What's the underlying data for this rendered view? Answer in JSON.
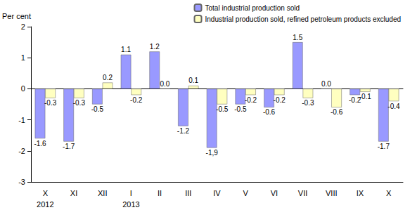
{
  "chart_data": {
    "type": "bar",
    "y_label": "Per cent",
    "categories": [
      "X\n2012",
      "XI",
      "XII",
      "I\n2013",
      "II",
      "III",
      "IV",
      "V",
      "VI",
      "VII",
      "VIII",
      "IX",
      "X"
    ],
    "series": [
      {
        "name": "Total industrial production sold",
        "color": "#9999ff",
        "values": [
          -1.6,
          -1.7,
          -0.5,
          1.1,
          1.2,
          -1.2,
          -1.9,
          -0.5,
          -0.6,
          1.5,
          0.0,
          -0.2,
          -1.7
        ],
        "value_labels": [
          "-1.6",
          "-1.7",
          "-0.5",
          "1.1",
          "1.2",
          "-1.2",
          "-1,9",
          "-0.5",
          "-0.6",
          "1.5",
          "0.0",
          "-0.2",
          "-1.7"
        ]
      },
      {
        "name": "Industrial production sold, refined petroleum products excluded",
        "color": "#ffffc0",
        "values": [
          -0.3,
          -0.3,
          0.2,
          -0.2,
          0.0,
          0.1,
          -0.5,
          -0.2,
          -0.2,
          -0.3,
          -0.6,
          -0.1,
          -0.4
        ],
        "value_labels": [
          "-0.3",
          "-0.3",
          "0.2",
          "-0.2",
          "0.0",
          "0.1",
          "-0.5",
          "-0.2",
          "-0.2",
          "-0.3",
          "-0.6",
          "-0.1",
          "-0.4"
        ]
      }
    ],
    "ylim": [
      -3,
      2
    ],
    "yticks": [
      -3,
      -2,
      -1,
      0,
      1,
      2
    ],
    "grid": false,
    "legend": "upper right",
    "data_labels": true
  }
}
